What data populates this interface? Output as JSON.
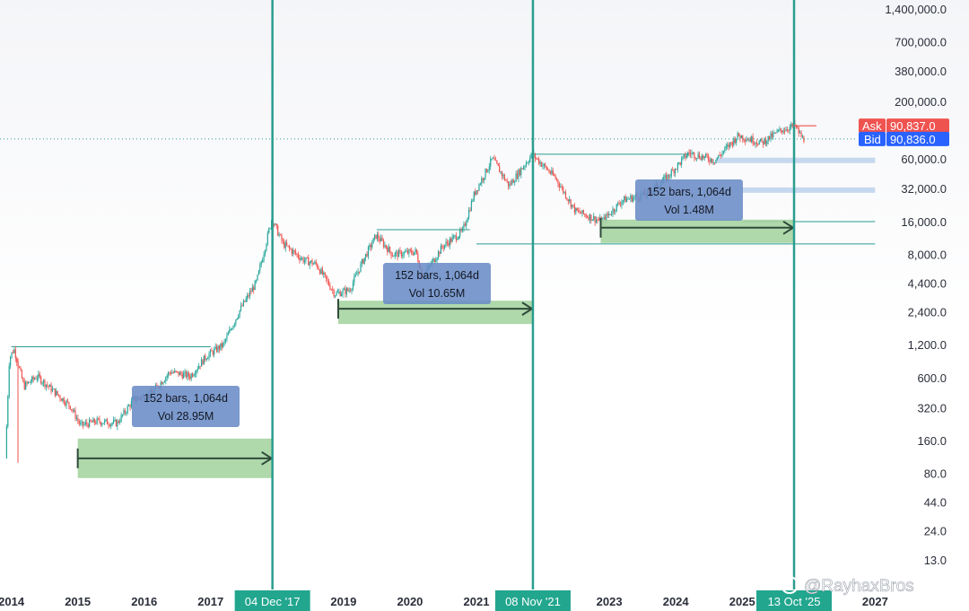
{
  "chart_data": {
    "type": "candlestick",
    "y_scale": "log",
    "ylim": [
      10,
      1500000
    ],
    "y_ticks": [
      {
        "value": 1400000,
        "label": "1,400,000.0"
      },
      {
        "value": 700000,
        "label": "700,000.0"
      },
      {
        "value": 380000,
        "label": "380,000.0"
      },
      {
        "value": 200000,
        "label": "200,000.0"
      },
      {
        "value": 60000,
        "label": "60,000.0"
      },
      {
        "value": 32000,
        "label": "32,000.0"
      },
      {
        "value": 16000,
        "label": "16,000.0"
      },
      {
        "value": 8000,
        "label": "8,000.0"
      },
      {
        "value": 4400,
        "label": "4,400.0"
      },
      {
        "value": 2400,
        "label": "2,400.0"
      },
      {
        "value": 1200,
        "label": "1,200.0"
      },
      {
        "value": 600,
        "label": "600.0"
      },
      {
        "value": 320,
        "label": "320.0"
      },
      {
        "value": 160,
        "label": "160.0"
      },
      {
        "value": 80,
        "label": "80.0"
      },
      {
        "value": 44,
        "label": "44.0"
      },
      {
        "value": 24,
        "label": "24.0"
      },
      {
        "value": 13,
        "label": "13.0"
      }
    ],
    "x_ticks": [
      {
        "year": 2014,
        "label": "2014"
      },
      {
        "year": 2015,
        "label": "2015"
      },
      {
        "year": 2016,
        "label": "2016"
      },
      {
        "year": 2017,
        "label": "2017"
      },
      {
        "year": 2019,
        "label": "2019"
      },
      {
        "year": 2020,
        "label": "2020"
      },
      {
        "year": 2021,
        "label": "2021"
      },
      {
        "year": 2023,
        "label": "2023"
      },
      {
        "year": 2024,
        "label": "2024"
      },
      {
        "year": 2025,
        "label": "2025"
      },
      {
        "year": 2027,
        "label": "2027"
      }
    ],
    "price_path": [
      {
        "year": 2013.92,
        "price": 110
      },
      {
        "year": 2013.98,
        "price": 900
      },
      {
        "year": 2014.05,
        "price": 1100
      },
      {
        "year": 2014.2,
        "price": 500
      },
      {
        "year": 2014.4,
        "price": 620
      },
      {
        "year": 2014.6,
        "price": 480
      },
      {
        "year": 2014.9,
        "price": 330
      },
      {
        "year": 2015.05,
        "price": 220
      },
      {
        "year": 2015.3,
        "price": 240
      },
      {
        "year": 2015.6,
        "price": 230
      },
      {
        "year": 2015.85,
        "price": 380
      },
      {
        "year": 2016.1,
        "price": 420
      },
      {
        "year": 2016.4,
        "price": 680
      },
      {
        "year": 2016.7,
        "price": 620
      },
      {
        "year": 2016.95,
        "price": 950
      },
      {
        "year": 2017.2,
        "price": 1200
      },
      {
        "year": 2017.45,
        "price": 2500
      },
      {
        "year": 2017.7,
        "price": 4500
      },
      {
        "year": 2017.93,
        "price": 17000
      },
      {
        "year": 2018.1,
        "price": 10000
      },
      {
        "year": 2018.4,
        "price": 7200
      },
      {
        "year": 2018.6,
        "price": 6500
      },
      {
        "year": 2018.88,
        "price": 3500
      },
      {
        "year": 2019.1,
        "price": 3800
      },
      {
        "year": 2019.3,
        "price": 7000
      },
      {
        "year": 2019.5,
        "price": 12000
      },
      {
        "year": 2019.75,
        "price": 8000
      },
      {
        "year": 2020.1,
        "price": 8500
      },
      {
        "year": 2020.2,
        "price": 5000
      },
      {
        "year": 2020.5,
        "price": 9500
      },
      {
        "year": 2020.8,
        "price": 13000
      },
      {
        "year": 2020.98,
        "price": 29000
      },
      {
        "year": 2021.25,
        "price": 60000
      },
      {
        "year": 2021.5,
        "price": 34000
      },
      {
        "year": 2021.85,
        "price": 66000
      },
      {
        "year": 2022.2,
        "price": 40000
      },
      {
        "year": 2022.5,
        "price": 20000
      },
      {
        "year": 2022.9,
        "price": 16000
      },
      {
        "year": 2023.2,
        "price": 25000
      },
      {
        "year": 2023.6,
        "price": 29000
      },
      {
        "year": 2023.9,
        "price": 42000
      },
      {
        "year": 2024.2,
        "price": 68000
      },
      {
        "year": 2024.6,
        "price": 58000
      },
      {
        "year": 2024.95,
        "price": 98000
      },
      {
        "year": 2025.3,
        "price": 84000
      },
      {
        "year": 2025.6,
        "price": 110000
      },
      {
        "year": 2025.8,
        "price": 120000
      },
      {
        "year": 2025.92,
        "price": 90836
      }
    ],
    "cycle_lines": [
      {
        "year": 2017.93,
        "label": "04 Dec '17"
      },
      {
        "year": 2021.85,
        "label": "08 Nov '21"
      },
      {
        "year": 2025.78,
        "label": "13 Oct '25"
      }
    ],
    "date_ranges": [
      {
        "from": 2015.0,
        "to": 2017.93,
        "bars_text": "152 bars, 1,064d",
        "vol_text": "Vol 28.95M"
      },
      {
        "from": 2018.92,
        "to": 2021.85,
        "bars_text": "152 bars, 1,064d",
        "vol_text": "Vol 10.65M"
      },
      {
        "from": 2022.87,
        "to": 2025.78,
        "bars_text": "152 bars, 1,064d",
        "vol_text": "Vol 1.48M"
      }
    ],
    "level_lines": [
      {
        "from": 2014.0,
        "to": 2017.0,
        "price": 1150
      },
      {
        "from": 2019.5,
        "to": 2020.9,
        "price": 13500
      },
      {
        "from": 2021.85,
        "to": 2024.2,
        "price": 66000
      },
      {
        "from": 2021.0,
        "to": 2027.0,
        "price": 10000
      },
      {
        "from": 2024.6,
        "to": 2027.0,
        "price": 58000
      },
      {
        "from": 2025.0,
        "to": 2027.0,
        "price": 31000
      },
      {
        "from": 2025.0,
        "to": 2027.0,
        "price": 16000
      }
    ],
    "ask": {
      "label": "Ask",
      "value": "90,837.0"
    },
    "bid": {
      "label": "Bid",
      "value": "90,836.0"
    },
    "colors": {
      "up": "#26a69a",
      "down": "#ef5350",
      "cycle": "#2a9d8f",
      "range_fill": "#a6d4a2",
      "box": "#6a8cc6",
      "ask": "#ef5350",
      "bid": "#2962ff"
    }
  },
  "watermark": "@RayhaxBros"
}
